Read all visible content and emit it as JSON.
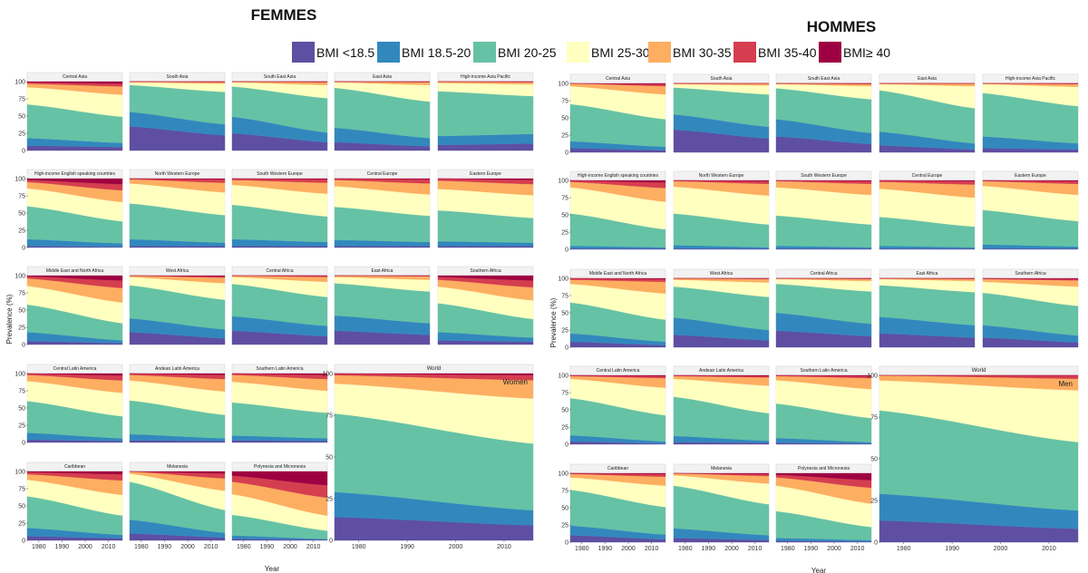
{
  "headers": {
    "left": "FEMMES",
    "right": "HOMMES"
  },
  "axis": {
    "ylabel": "Prevalence (%)",
    "xlabel": "Year"
  },
  "legend": [
    {
      "label": "BMI <18.5",
      "color": "#5e4fa2"
    },
    {
      "label": "BMI 18.5-20",
      "color": "#3288bd"
    },
    {
      "label": "BMI 20-25",
      "color": "#66c2a5"
    },
    {
      "label": "BMI 25-30",
      "color": "#ffffbf"
    },
    {
      "label": "BMI 30-35",
      "color": "#fdae61"
    },
    {
      "label": "BMI 35-40",
      "color": "#d53e4f"
    },
    {
      "label": "BMI≥ 40",
      "color": "#9e0142"
    }
  ],
  "chart_data": {
    "type": "area",
    "stacked": true,
    "x": [
      1975,
      2016
    ],
    "x_ticks": [
      1980,
      1990,
      2000,
      2010
    ],
    "ylim": [
      0,
      100
    ],
    "y_ticks": [
      0,
      25,
      50,
      75,
      100
    ],
    "categories": [
      "BMI <18.5",
      "BMI 18.5-20",
      "BMI 20-25",
      "BMI 25-30",
      "BMI 30-35",
      "BMI 35-40",
      "BMI≥ 40"
    ],
    "note_women": "Women",
    "note_men": "Men",
    "panels": {
      "women": [
        {
          "name": "Central Asia",
          "start": [
            7,
            11,
            49,
            25,
            5,
            2,
            1
          ],
          "end": [
            5,
            6,
            38,
            32,
            12,
            4,
            3
          ]
        },
        {
          "name": "South Asia",
          "start": [
            35,
            21,
            39,
            4,
            1,
            0,
            0
          ],
          "end": [
            22,
            16,
            47,
            12,
            2,
            1,
            0
          ]
        },
        {
          "name": "South East Asia",
          "start": [
            25,
            24,
            44,
            6,
            1,
            0,
            0
          ],
          "end": [
            12,
            14,
            50,
            19,
            4,
            1,
            0
          ]
        },
        {
          "name": "East Asia",
          "start": [
            12,
            21,
            58,
            8,
            1,
            0,
            0
          ],
          "end": [
            6,
            12,
            53,
            24,
            4,
            1,
            0
          ]
        },
        {
          "name": "High-income Asia Pacific",
          "start": [
            8,
            13,
            65,
            12,
            2,
            0,
            0
          ],
          "end": [
            10,
            14,
            55,
            17,
            3,
            1,
            0
          ]
        },
        {
          "name": "High-income English speaking countries",
          "start": [
            2,
            10,
            48,
            26,
            9,
            3,
            2
          ],
          "end": [
            1,
            5,
            32,
            28,
            17,
            9,
            8
          ]
        },
        {
          "name": "North Western Europe",
          "start": [
            2,
            10,
            52,
            29,
            6,
            1,
            0
          ],
          "end": [
            2,
            5,
            40,
            33,
            14,
            5,
            1
          ]
        },
        {
          "name": "South Western Europe",
          "start": [
            2,
            10,
            50,
            29,
            7,
            2,
            0
          ],
          "end": [
            2,
            6,
            37,
            33,
            16,
            5,
            1
          ]
        },
        {
          "name": "Central Europe",
          "start": [
            2,
            9,
            48,
            30,
            9,
            2,
            0
          ],
          "end": [
            2,
            6,
            38,
            31,
            16,
            6,
            1
          ]
        },
        {
          "name": "Eastern Europe",
          "start": [
            2,
            7,
            45,
            31,
            12,
            3,
            0
          ],
          "end": [
            2,
            5,
            36,
            33,
            16,
            6,
            2
          ]
        },
        {
          "name": "Middle East and North Africa",
          "start": [
            5,
            13,
            40,
            27,
            11,
            3,
            1
          ],
          "end": [
            2,
            4,
            25,
            30,
            21,
            11,
            7
          ]
        },
        {
          "name": "West Africa",
          "start": [
            18,
            20,
            48,
            12,
            2,
            0,
            0
          ],
          "end": [
            9,
            13,
            43,
            24,
            8,
            2,
            1
          ]
        },
        {
          "name": "Central Africa",
          "start": [
            20,
            21,
            47,
            10,
            2,
            0,
            0
          ],
          "end": [
            12,
            15,
            42,
            22,
            7,
            2,
            0
          ]
        },
        {
          "name": "East Africa",
          "start": [
            20,
            22,
            47,
            9,
            2,
            0,
            0
          ],
          "end": [
            14,
            17,
            46,
            17,
            5,
            1,
            0
          ]
        },
        {
          "name": "Southern Africa",
          "start": [
            6,
            12,
            42,
            24,
            10,
            4,
            2
          ],
          "end": [
            4,
            6,
            27,
            27,
            19,
            10,
            7
          ]
        },
        {
          "name": "Central Latin America",
          "start": [
            4,
            10,
            46,
            29,
            9,
            2,
            0
          ],
          "end": [
            2,
            4,
            32,
            34,
            18,
            7,
            3
          ]
        },
        {
          "name": "Andean Latin America",
          "start": [
            3,
            9,
            49,
            29,
            8,
            2,
            0
          ],
          "end": [
            2,
            4,
            34,
            34,
            18,
            6,
            2
          ]
        },
        {
          "name": "Southern Latin America",
          "start": [
            3,
            7,
            48,
            30,
            10,
            2,
            0
          ],
          "end": [
            2,
            4,
            37,
            32,
            17,
            6,
            2
          ]
        },
        {
          "name": "Caribbean",
          "start": [
            6,
            12,
            46,
            24,
            8,
            3,
            1
          ],
          "end": [
            3,
            5,
            28,
            30,
            21,
            9,
            4
          ]
        },
        {
          "name": "Melanesia",
          "start": [
            10,
            20,
            55,
            12,
            3,
            0,
            0
          ],
          "end": [
            4,
            7,
            33,
            28,
            18,
            7,
            3
          ]
        },
        {
          "name": "Polynesia and Micronesia",
          "start": [
            2,
            5,
            30,
            30,
            18,
            9,
            6
          ],
          "end": [
            1,
            1,
            12,
            22,
            26,
            18,
            20
          ]
        },
        {
          "name": "World",
          "start": [
            14,
            15,
            47,
            18,
            5,
            1,
            0
          ],
          "end": [
            9,
            9,
            40,
            27,
            11,
            3,
            1
          ]
        }
      ],
      "men": [
        {
          "name": "Central Asia",
          "start": [
            6,
            10,
            54,
            26,
            4,
            0,
            0
          ],
          "end": [
            3,
            5,
            40,
            36,
            12,
            3,
            1
          ]
        },
        {
          "name": "South Asia",
          "start": [
            33,
            22,
            39,
            5,
            1,
            0,
            0
          ],
          "end": [
            20,
            17,
            47,
            13,
            3,
            0,
            0
          ]
        },
        {
          "name": "South East Asia",
          "start": [
            23,
            25,
            45,
            6,
            1,
            0,
            0
          ],
          "end": [
            12,
            16,
            49,
            19,
            3,
            1,
            0
          ]
        },
        {
          "name": "East Asia",
          "start": [
            10,
            20,
            60,
            9,
            1,
            0,
            0
          ],
          "end": [
            4,
            9,
            51,
            32,
            4,
            0,
            0
          ]
        },
        {
          "name": "High-income Asia Pacific",
          "start": [
            6,
            17,
            63,
            13,
            1,
            0,
            0
          ],
          "end": [
            4,
            9,
            54,
            28,
            4,
            1,
            0
          ]
        },
        {
          "name": "High-income English speaking countries",
          "start": [
            1,
            4,
            47,
            38,
            8,
            2,
            0
          ],
          "end": [
            1,
            2,
            26,
            40,
            20,
            8,
            3
          ]
        },
        {
          "name": "North Western Europe",
          "start": [
            1,
            5,
            46,
            39,
            8,
            1,
            0
          ],
          "end": [
            1,
            2,
            33,
            42,
            17,
            4,
            1
          ]
        },
        {
          "name": "South Western Europe",
          "start": [
            1,
            4,
            44,
            41,
            9,
            1,
            0
          ],
          "end": [
            1,
            2,
            33,
            43,
            16,
            4,
            1
          ]
        },
        {
          "name": "Central Europe",
          "start": [
            1,
            4,
            42,
            41,
            10,
            2,
            0
          ],
          "end": [
            1,
            2,
            30,
            42,
            19,
            5,
            1
          ]
        },
        {
          "name": "Eastern Europe",
          "start": [
            1,
            6,
            50,
            35,
            7,
            1,
            0
          ],
          "end": [
            1,
            3,
            37,
            38,
            16,
            4,
            1
          ]
        },
        {
          "name": "Middle East and North Africa",
          "start": [
            8,
            12,
            45,
            27,
            6,
            2,
            0
          ],
          "end": [
            3,
            5,
            32,
            38,
            17,
            4,
            1
          ]
        },
        {
          "name": "West Africa",
          "start": [
            18,
            25,
            45,
            10,
            2,
            0,
            0
          ],
          "end": [
            10,
            15,
            48,
            21,
            5,
            1,
            0
          ]
        },
        {
          "name": "Central Africa",
          "start": [
            24,
            26,
            42,
            7,
            1,
            0,
            0
          ],
          "end": [
            16,
            18,
            47,
            15,
            3,
            1,
            0
          ]
        },
        {
          "name": "East Africa",
          "start": [
            20,
            24,
            46,
            9,
            1,
            0,
            0
          ],
          "end": [
            14,
            18,
            48,
            16,
            3,
            1,
            0
          ]
        },
        {
          "name": "Southern Africa",
          "start": [
            14,
            18,
            47,
            16,
            4,
            1,
            0
          ],
          "end": [
            7,
            10,
            43,
            28,
            9,
            2,
            1
          ]
        },
        {
          "name": "Central Latin America",
          "start": [
            4,
            9,
            54,
            28,
            4,
            1,
            0
          ],
          "end": [
            1,
            3,
            38,
            40,
            14,
            3,
            1
          ]
        },
        {
          "name": "Andean Latin America",
          "start": [
            3,
            9,
            57,
            26,
            4,
            1,
            0
          ],
          "end": [
            2,
            3,
            40,
            40,
            12,
            2,
            1
          ]
        },
        {
          "name": "Southern Latin America",
          "start": [
            2,
            7,
            50,
            34,
            6,
            1,
            0
          ],
          "end": [
            1,
            2,
            35,
            42,
            16,
            3,
            1
          ]
        },
        {
          "name": "Caribbean",
          "start": [
            10,
            14,
            52,
            18,
            5,
            1,
            0
          ],
          "end": [
            4,
            7,
            40,
            31,
            13,
            4,
            1
          ]
        },
        {
          "name": "Melanesia",
          "start": [
            6,
            14,
            62,
            15,
            3,
            0,
            0
          ],
          "end": [
            3,
            7,
            45,
            30,
            11,
            3,
            1
          ]
        },
        {
          "name": "Polynesia and Micronesia",
          "start": [
            2,
            4,
            39,
            37,
            12,
            4,
            2
          ],
          "end": [
            1,
            2,
            19,
            34,
            23,
            11,
            10
          ]
        },
        {
          "name": "World",
          "start": [
            13,
            16,
            50,
            18,
            3,
            0,
            0
          ],
          "end": [
            8,
            11,
            41,
            31,
            7,
            2,
            0
          ]
        }
      ]
    }
  }
}
